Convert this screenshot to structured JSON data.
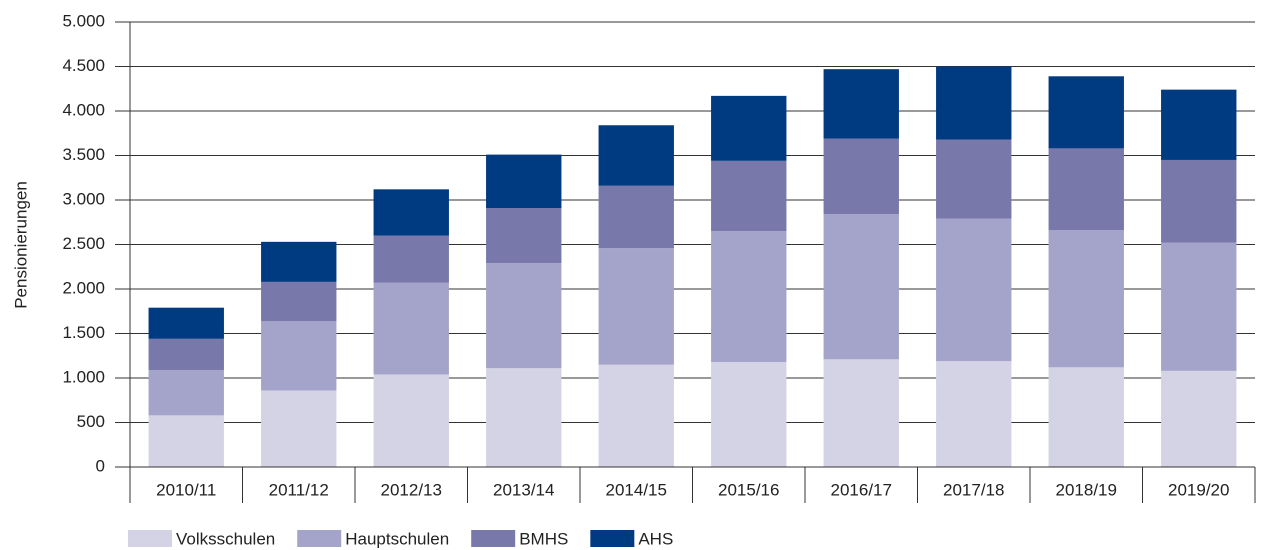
{
  "chart_data": {
    "type": "stacked-bar",
    "y_label": "Pensionierungen",
    "categories": [
      "2010/11",
      "2011/12",
      "2012/13",
      "2013/14",
      "2014/15",
      "2015/16",
      "2016/17",
      "2017/18",
      "2018/19",
      "2019/20"
    ],
    "series": [
      {
        "name": "Volksschulen",
        "color": "#d3d3e5",
        "values": [
          580,
          860,
          1040,
          1110,
          1150,
          1180,
          1210,
          1190,
          1120,
          1080
        ]
      },
      {
        "name": "Hauptschulen",
        "color": "#a4a4ca",
        "values": [
          510,
          780,
          1030,
          1180,
          1310,
          1470,
          1630,
          1600,
          1540,
          1440
        ]
      },
      {
        "name": "BMHS",
        "color": "#7878aa",
        "values": [
          350,
          440,
          530,
          620,
          700,
          790,
          850,
          890,
          920,
          930
        ]
      },
      {
        "name": "AHS",
        "color": "#003a80",
        "values": [
          350,
          450,
          520,
          600,
          680,
          730,
          780,
          820,
          810,
          790
        ]
      }
    ],
    "ylim": [
      0,
      5000
    ],
    "yticks": [
      0,
      500,
      {
        "value": 1000,
        "label": "1.000"
      },
      {
        "value": 1500,
        "label": "1.500"
      },
      {
        "value": 2000,
        "label": "2.000"
      },
      {
        "value": 2500,
        "label": "2.500"
      },
      {
        "value": 3000,
        "label": "3.000"
      },
      {
        "value": 3500,
        "label": "3.500"
      },
      {
        "value": 4000,
        "label": "4.000"
      },
      {
        "value": 4500,
        "label": "4.500"
      },
      {
        "value": 5000,
        "label": "5.000"
      }
    ],
    "grid": true,
    "legend": "bottom-left"
  }
}
